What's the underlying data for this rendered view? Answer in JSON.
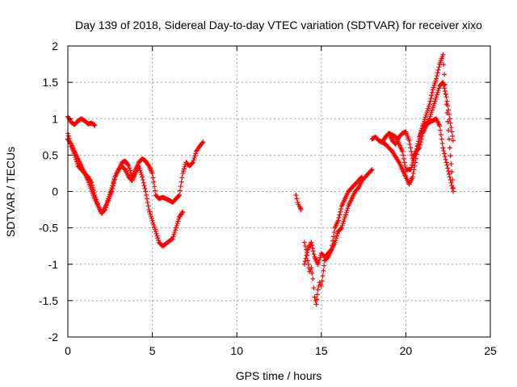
{
  "chart_data": {
    "type": "scatter",
    "title": "Day 139 of 2018, Sidereal Day-to-day VTEC variation (SDTVAR) for receiver xixo",
    "xlabel": "GPS time / hours",
    "ylabel": "SDTVAR / TECUs",
    "xlim": [
      0,
      25
    ],
    "ylim": [
      -2,
      2
    ],
    "xticks": [
      0,
      5,
      10,
      15,
      20,
      25
    ],
    "yticks": [
      -2,
      -1.5,
      -1,
      -0.5,
      0,
      0.5,
      1,
      1.5,
      2
    ],
    "xtick_labels": [
      "0",
      "5",
      "10",
      "15",
      "20",
      "25"
    ],
    "ytick_labels": [
      "-2",
      "-1.5",
      "-1",
      "-0.5",
      "0",
      "0.5",
      "1",
      "1.5",
      "2"
    ],
    "grid": true,
    "marker": "+",
    "color": "#ff0000",
    "series": [
      {
        "name": "a",
        "x": [
          0.0,
          0.2,
          0.4,
          0.6,
          0.8,
          1.0,
          1.2,
          1.4,
          1.6
        ],
        "y": [
          1.03,
          0.95,
          0.92,
          0.97,
          1.0,
          0.97,
          0.93,
          0.94,
          0.91
        ]
      },
      {
        "name": "b",
        "x": [
          0.0,
          0.2,
          0.4,
          0.6,
          0.8,
          1.0,
          1.2,
          1.4,
          1.6,
          1.8,
          2.0,
          2.2,
          2.4,
          2.6,
          2.8,
          3.0,
          3.2,
          3.4,
          3.6,
          3.8,
          4.0,
          4.2,
          4.4,
          4.6,
          4.8,
          5.0,
          5.2,
          5.4,
          5.6,
          5.8,
          6.0,
          6.2,
          6.4,
          6.6,
          6.8
        ],
        "y": [
          0.8,
          0.62,
          0.5,
          0.35,
          0.3,
          0.25,
          0.15,
          0.02,
          -0.1,
          -0.2,
          -0.3,
          -0.25,
          -0.1,
          0.05,
          0.2,
          0.3,
          0.35,
          0.3,
          0.2,
          0.15,
          0.25,
          0.35,
          0.2,
          0.0,
          -0.25,
          -0.4,
          -0.55,
          -0.7,
          -0.75,
          -0.72,
          -0.68,
          -0.65,
          -0.5,
          -0.35,
          -0.28
        ]
      },
      {
        "name": "c",
        "x": [
          0.0,
          0.2,
          0.4,
          0.6,
          0.8,
          1.0,
          1.2,
          1.4,
          1.6,
          1.8,
          2.0,
          2.2,
          2.4,
          2.6,
          2.8,
          3.0,
          3.2,
          3.4,
          3.6,
          3.8,
          4.0,
          4.2,
          4.4,
          4.6,
          4.8,
          5.0,
          5.2,
          5.4,
          5.6,
          5.8,
          6.0,
          6.2,
          6.4,
          6.6,
          6.8,
          7.0,
          7.2,
          7.4,
          7.6,
          7.8,
          8.0
        ],
        "y": [
          0.72,
          0.65,
          0.55,
          0.45,
          0.35,
          0.25,
          0.2,
          0.12,
          -0.05,
          -0.2,
          -0.3,
          -0.22,
          -0.12,
          0.0,
          0.2,
          0.3,
          0.4,
          0.42,
          0.35,
          0.2,
          0.3,
          0.4,
          0.45,
          0.42,
          0.35,
          0.25,
          -0.05,
          -0.1,
          -0.08,
          -0.1,
          -0.12,
          -0.15,
          -0.1,
          -0.05,
          0.25,
          0.4,
          0.35,
          0.4,
          0.55,
          0.62,
          0.68
        ]
      },
      {
        "name": "d",
        "x": [
          13.5,
          13.6,
          13.7,
          13.8
        ],
        "y": [
          -0.05,
          -0.15,
          -0.2,
          -0.25
        ]
      },
      {
        "name": "e",
        "x": [
          14.0,
          14.1,
          14.2,
          14.3,
          14.4,
          14.5,
          14.6,
          14.7,
          14.8,
          14.9,
          15.0,
          15.2,
          15.4,
          15.6,
          15.8,
          16.0,
          16.2,
          16.4,
          16.6,
          16.8,
          17.0,
          17.2,
          17.4,
          17.6,
          17.8,
          18.0
        ],
        "y": [
          -0.7,
          -0.8,
          -0.95,
          -1.1,
          -1.05,
          -1.2,
          -1.45,
          -1.55,
          -1.35,
          -1.25,
          -1.3,
          -0.95,
          -0.9,
          -0.8,
          -0.7,
          -0.55,
          -0.5,
          -0.35,
          -0.2,
          -0.1,
          0.0,
          0.05,
          0.15,
          0.2,
          0.25,
          0.3
        ]
      },
      {
        "name": "f",
        "x": [
          14.0,
          14.2,
          14.4,
          14.6,
          14.8,
          15.0,
          15.2,
          15.4,
          15.6,
          15.8,
          16.0,
          16.2,
          16.4,
          16.6,
          16.8,
          17.0,
          17.2,
          17.4
        ],
        "y": [
          -1.0,
          -0.8,
          -0.7,
          -0.9,
          -1.0,
          -0.85,
          -0.9,
          -0.85,
          -0.8,
          -0.5,
          -0.4,
          -0.2,
          -0.1,
          0.0,
          0.05,
          0.1,
          0.15,
          0.2
        ]
      },
      {
        "name": "g",
        "x": [
          18.0,
          18.2,
          18.4,
          18.6,
          18.8,
          19.0,
          19.2,
          19.4,
          19.6,
          19.8,
          20.0,
          20.2,
          20.4,
          20.6,
          20.8,
          21.0,
          21.2,
          21.4,
          21.6,
          21.8,
          22.0,
          22.2,
          22.4,
          22.6,
          22.8
        ],
        "y": [
          0.72,
          0.75,
          0.7,
          0.68,
          0.75,
          0.8,
          0.7,
          0.65,
          0.75,
          0.8,
          0.82,
          0.7,
          0.45,
          0.55,
          0.6,
          0.8,
          0.9,
          1.0,
          1.15,
          1.3,
          1.45,
          1.5,
          1.3,
          1.0,
          0.7
        ]
      },
      {
        "name": "h",
        "x": [
          18.4,
          18.8,
          19.2,
          19.6,
          20.0,
          20.2,
          20.4,
          20.6,
          20.8,
          21.0,
          21.2,
          21.4,
          21.6,
          21.8,
          22.0,
          22.2,
          22.4,
          22.6,
          22.8
        ],
        "y": [
          0.7,
          0.65,
          0.55,
          0.4,
          0.2,
          0.1,
          0.2,
          0.45,
          0.75,
          0.9,
          1.05,
          1.2,
          1.4,
          1.55,
          1.75,
          1.88,
          1.2,
          0.6,
          0.05
        ]
      },
      {
        "name": "i",
        "x": [
          19.0,
          19.4,
          19.8,
          20.0,
          20.3,
          20.6,
          21.0,
          21.4,
          21.8,
          22.0,
          22.2,
          22.4,
          22.6,
          22.8
        ],
        "y": [
          0.8,
          0.75,
          0.55,
          0.3,
          0.3,
          0.55,
          0.9,
          0.95,
          1.0,
          0.9,
          0.6,
          0.4,
          0.2,
          0.0
        ]
      }
    ]
  }
}
